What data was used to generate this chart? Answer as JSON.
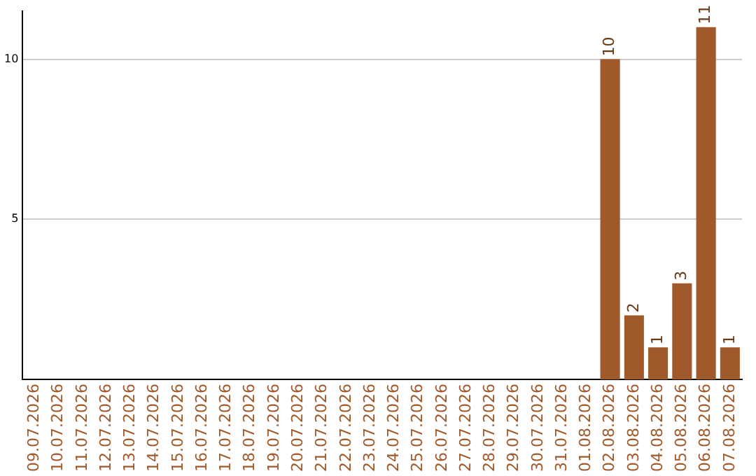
{
  "chart_data": {
    "type": "bar",
    "categories": [
      "09.07.2026",
      "10.07.2026",
      "11.07.2026",
      "12.07.2026",
      "13.07.2026",
      "14.07.2026",
      "15.07.2026",
      "16.07.2026",
      "17.07.2026",
      "18.07.2026",
      "19.07.2026",
      "20.07.2026",
      "21.07.2026",
      "22.07.2026",
      "23.07.2026",
      "24.07.2026",
      "25.07.2026",
      "26.07.2026",
      "27.07.2026",
      "28.07.2026",
      "29.07.2026",
      "30.07.2026",
      "31.07.2026",
      "01.08.2026",
      "02.08.2026",
      "03.08.2026",
      "04.08.2026",
      "05.08.2026",
      "06.08.2026",
      "07.08.2026"
    ],
    "values": [
      0,
      0,
      0,
      0,
      0,
      0,
      0,
      0,
      0,
      0,
      0,
      0,
      0,
      0,
      0,
      0,
      0,
      0,
      0,
      0,
      0,
      0,
      0,
      0,
      10,
      2,
      1,
      3,
      11,
      1
    ],
    "value_labels": [
      null,
      null,
      null,
      null,
      null,
      null,
      null,
      null,
      null,
      null,
      null,
      null,
      null,
      null,
      null,
      null,
      null,
      null,
      null,
      null,
      null,
      null,
      null,
      null,
      "10",
      "2",
      "1",
      "3",
      "11",
      "1"
    ],
    "color": "#a0592a",
    "ylim": [
      0,
      11.5
    ],
    "yticks": [
      5,
      10
    ],
    "grid": "y",
    "legend": false
  }
}
